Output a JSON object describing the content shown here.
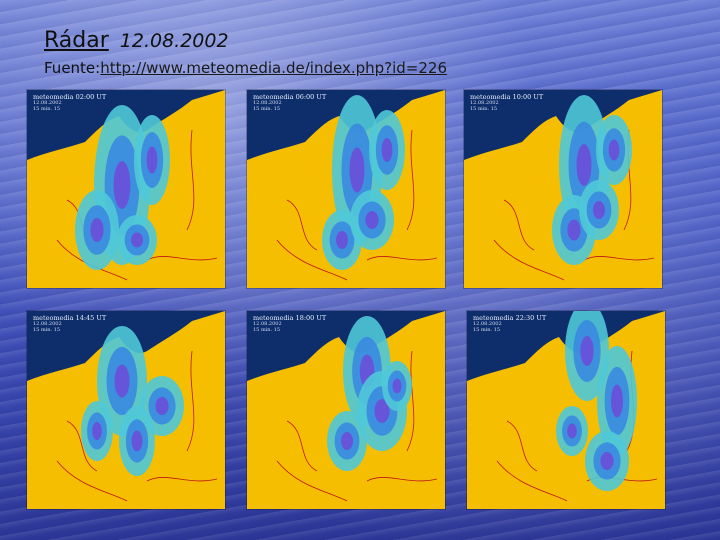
{
  "slide": {
    "title": "Rádar",
    "date": "12.08.2002",
    "source_label": "Fuente:",
    "source_url": "http://www.meteomedia.de/index.php?id=226"
  },
  "panels": [
    {
      "time": "meteomedia 02:00 UT",
      "date": "12.08.2002",
      "sub": "15 min. 15"
    },
    {
      "time": "meteomedia 06:00 UT",
      "date": "12.08.2002",
      "sub": "15 min. 15"
    },
    {
      "time": "meteomedia 10:00 UT",
      "date": "12.08.2002",
      "sub": "15 min. 15"
    },
    {
      "time": "meteomedia 14:45 UT",
      "date": "12.08.2002",
      "sub": "15 min. 15"
    },
    {
      "time": "meteomedia 18:00 UT",
      "date": "12.08.2002",
      "sub": "15 min. 15"
    },
    {
      "time": "meteomedia 22:30 UT",
      "date": "12.08.2002",
      "sub": "15 min. 15"
    }
  ],
  "colors": {
    "sea": "#0d2d6b",
    "land": "#f5be00",
    "rain_light": "#4fc8d8",
    "rain_mid": "#3a8ae0",
    "rain_heavy": "#6a4fd8",
    "border": "#c0151a"
  }
}
